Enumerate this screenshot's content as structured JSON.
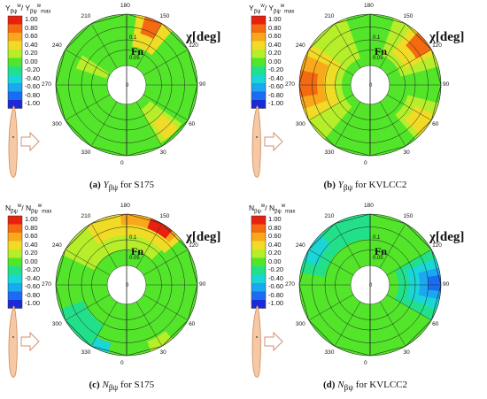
{
  "colorbar": {
    "labels": [
      "1.00",
      "0.80",
      "0.60",
      "0.40",
      "0.20",
      "0.00",
      "-0.20",
      "-0.40",
      "-0.60",
      "-0.80",
      "-1.00"
    ],
    "colors": [
      "#e8210f",
      "#f46a10",
      "#f8a81a",
      "#f0dc26",
      "#b6ee2a",
      "#52e52a",
      "#22e08a",
      "#1ad6d6",
      "#1aa8f0",
      "#1a6cf0",
      "#1a2ad8"
    ]
  },
  "common": {
    "chi_label": "χ[deg]",
    "fn_label": "Fn",
    "angles": [
      "180",
      "150",
      "120",
      "90",
      "60",
      "30",
      "0",
      "330",
      "300",
      "270",
      "240",
      "210"
    ],
    "radial_labels": [
      "0.1",
      "0.05",
      "0"
    ]
  },
  "panels": [
    {
      "id": "a",
      "cb_title": {
        "sym": "Y",
        "sub": "βψ",
        "sup": "w",
        "suffix": "max"
      },
      "caption": {
        "tag": "(a)",
        "sym": "Y",
        "sub": "βψ",
        "text": " for S175"
      }
    },
    {
      "id": "b",
      "cb_title": {
        "sym": "Y",
        "sub": "βψ",
        "sup": "w",
        "suffix": "max"
      },
      "caption": {
        "tag": "(b)",
        "sym": "Y",
        "sub": "βψ",
        "text": " for KVLCC2"
      }
    },
    {
      "id": "c",
      "cb_title": {
        "sym": "N",
        "sub": "βψ",
        "sup": "w",
        "suffix": "max"
      },
      "caption": {
        "tag": "(c)",
        "sym": "N",
        "sub": "βψ",
        "text": " for S175"
      }
    },
    {
      "id": "d",
      "cb_title": {
        "sym": "N",
        "sub": "βψ",
        "sup": "w",
        "suffix": "max"
      },
      "caption": {
        "tag": "(d)",
        "sym": "N",
        "sub": "βψ",
        "text": " for KVLCC2"
      }
    }
  ]
}
